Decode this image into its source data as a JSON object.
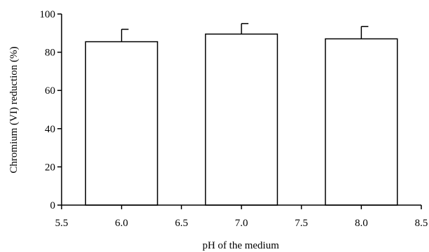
{
  "chart_data": {
    "type": "bar",
    "categories": [
      6.0,
      7.0,
      8.0
    ],
    "values": [
      85.5,
      89.5,
      87.0
    ],
    "errors": [
      6.5,
      5.5,
      6.5
    ],
    "xlabel": "pH of the medium",
    "ylabel": "Chromium (VI) reduction (%)",
    "xlim": [
      5.5,
      8.5
    ],
    "ylim": [
      0,
      100
    ],
    "x_ticks": [
      5.5,
      6.0,
      6.5,
      7.0,
      7.5,
      8.0,
      8.5
    ],
    "x_tick_labels": [
      "5.5",
      "6.0",
      "6.5",
      "7.0",
      "7.5",
      "8.0",
      "8.5"
    ],
    "y_ticks": [
      0,
      20,
      40,
      60,
      80,
      100
    ],
    "y_tick_labels": [
      "0",
      "20",
      "40",
      "60",
      "80",
      "100"
    ],
    "bar_width": 0.6,
    "grid": false,
    "legend": "none"
  }
}
